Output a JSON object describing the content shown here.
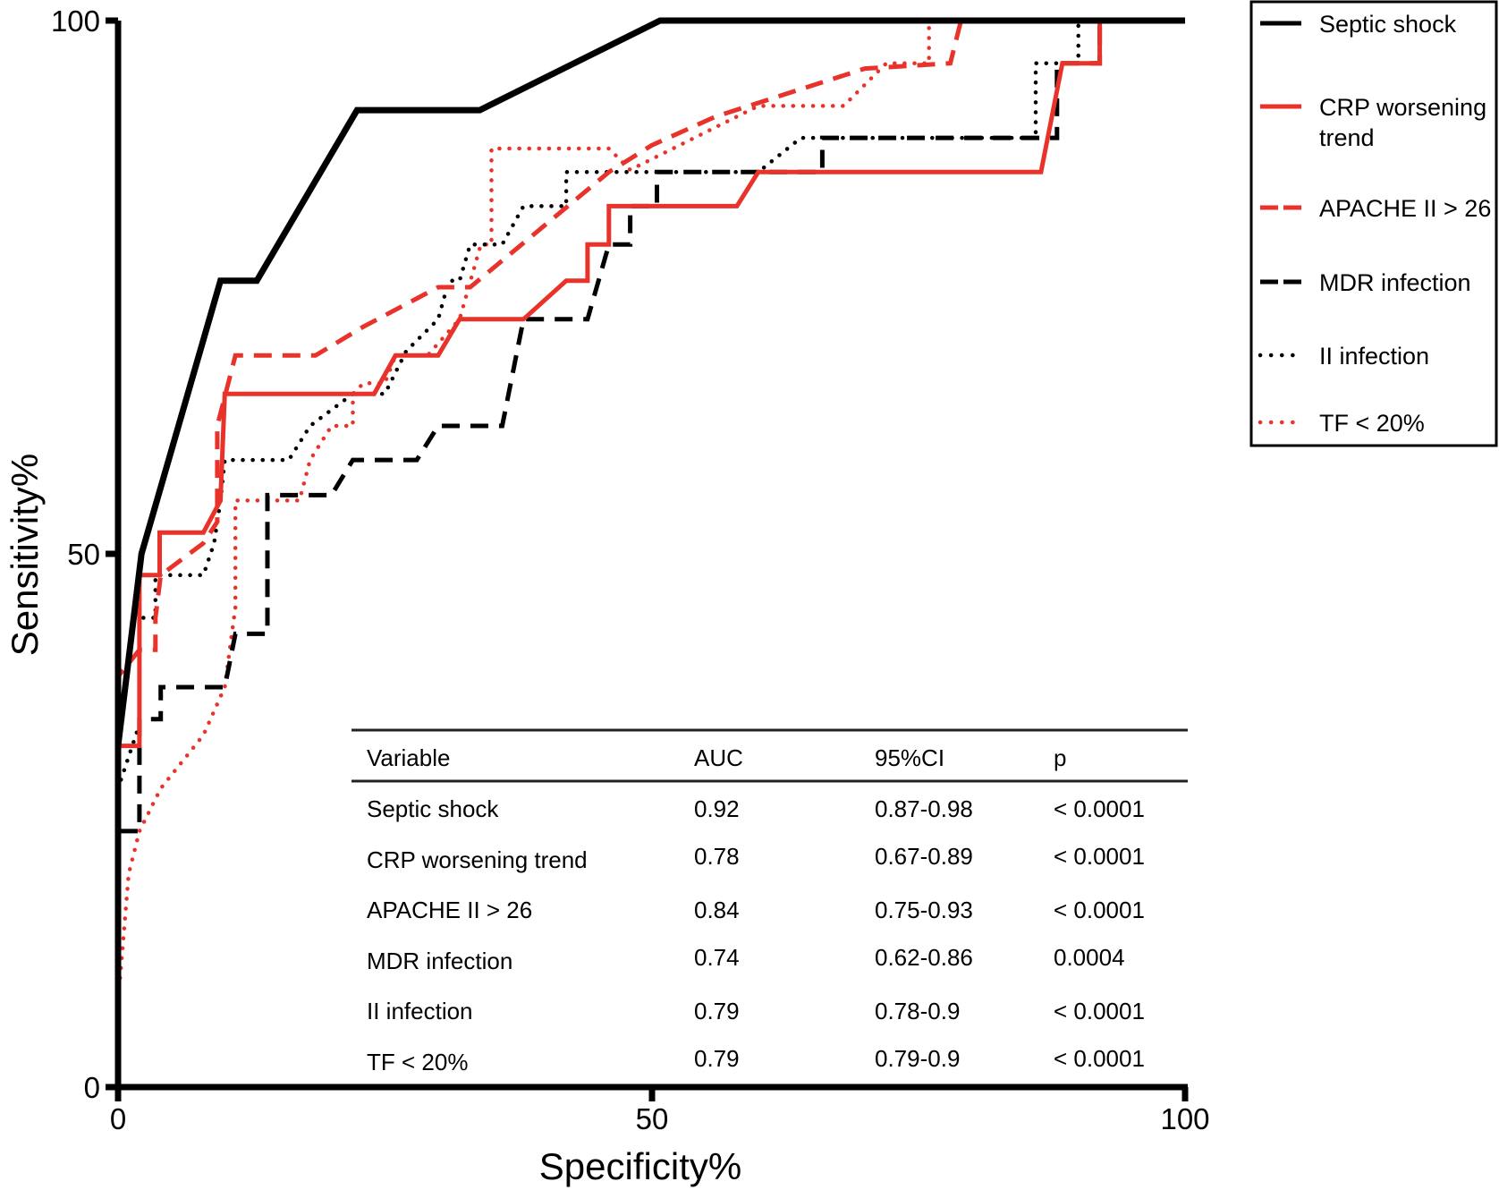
{
  "chart_data": {
    "type": "line",
    "title": "",
    "xlabel": "Specificity%",
    "ylabel": "Sensitivity%",
    "xlim": [
      0,
      100
    ],
    "ylim": [
      0,
      100
    ],
    "xticks": [
      "0",
      "50",
      "100"
    ],
    "yticks": [
      "0",
      "50",
      "100"
    ],
    "grid": false,
    "legend_position": "top-right-outside",
    "series": [
      {
        "name": "Septic shock",
        "color": "#000000",
        "style": "solid",
        "points": [
          [
            0,
            0
          ],
          [
            0,
            32
          ],
          [
            2.2,
            50
          ],
          [
            9.6,
            75.6
          ],
          [
            13,
            75.6
          ],
          [
            22.4,
            91.6
          ],
          [
            33.9,
            91.6
          ],
          [
            50.8,
            100
          ],
          [
            100,
            100
          ]
        ]
      },
      {
        "name": "CRP worsening trend",
        "color": "#e8322a",
        "style": "solid",
        "points": [
          [
            0,
            0
          ],
          [
            0,
            32
          ],
          [
            2,
            32
          ],
          [
            2,
            48
          ],
          [
            3.9,
            48
          ],
          [
            3.9,
            52
          ],
          [
            8,
            52
          ],
          [
            9.6,
            55
          ],
          [
            10,
            65
          ],
          [
            24,
            65
          ],
          [
            26,
            68.6
          ],
          [
            30,
            68.6
          ],
          [
            32,
            72
          ],
          [
            38,
            72
          ],
          [
            42,
            75.6
          ],
          [
            44,
            75.6
          ],
          [
            44,
            79
          ],
          [
            46,
            79
          ],
          [
            46,
            82.6
          ],
          [
            58,
            82.6
          ],
          [
            60,
            85.8
          ],
          [
            86.5,
            85.8
          ],
          [
            88.5,
            96
          ],
          [
            92,
            96
          ],
          [
            92,
            100
          ],
          [
            100,
            100
          ]
        ]
      },
      {
        "name": "APACHE II > 26",
        "color": "#e8322a",
        "style": "dashed",
        "points": [
          [
            0,
            0
          ],
          [
            0,
            38.5
          ],
          [
            2,
            41
          ],
          [
            3.5,
            41
          ],
          [
            3.5,
            44
          ],
          [
            4,
            48
          ],
          [
            8,
            51
          ],
          [
            9.3,
            53
          ],
          [
            9.3,
            62
          ],
          [
            11,
            68.6
          ],
          [
            18.5,
            68.6
          ],
          [
            23,
            71.3
          ],
          [
            30,
            75
          ],
          [
            33,
            75
          ],
          [
            46,
            85.8
          ],
          [
            50,
            88.3
          ],
          [
            56,
            91
          ],
          [
            70,
            95.5
          ],
          [
            78,
            96
          ],
          [
            79,
            100
          ],
          [
            100,
            100
          ]
        ]
      },
      {
        "name": "MDR infection",
        "color": "#000000",
        "style": "dashed",
        "points": [
          [
            0,
            0
          ],
          [
            0,
            24
          ],
          [
            2,
            24
          ],
          [
            2,
            34.5
          ],
          [
            4,
            34.5
          ],
          [
            4,
            37.5
          ],
          [
            10,
            37.5
          ],
          [
            11,
            42.5
          ],
          [
            14,
            42.5
          ],
          [
            14,
            55.5
          ],
          [
            20,
            55.5
          ],
          [
            22,
            58.8
          ],
          [
            28,
            58.8
          ],
          [
            30,
            62
          ],
          [
            36,
            62
          ],
          [
            38,
            72
          ],
          [
            44,
            72
          ],
          [
            46,
            79
          ],
          [
            48,
            79
          ],
          [
            48,
            82.6
          ],
          [
            50.5,
            82.6
          ],
          [
            50.5,
            85.8
          ],
          [
            66,
            85.8
          ],
          [
            66,
            89
          ],
          [
            88,
            89
          ],
          [
            88,
            96
          ],
          [
            92,
            96
          ],
          [
            92,
            100
          ],
          [
            100,
            100
          ]
        ]
      },
      {
        "name": "II infection",
        "color": "#000000",
        "style": "dotted",
        "points": [
          [
            0,
            0
          ],
          [
            0,
            28
          ],
          [
            2,
            34
          ],
          [
            2,
            44
          ],
          [
            3.5,
            44
          ],
          [
            3.5,
            48
          ],
          [
            8,
            48
          ],
          [
            9,
            51
          ],
          [
            9.6,
            55
          ],
          [
            10,
            58.8
          ],
          [
            16,
            58.8
          ],
          [
            18,
            62
          ],
          [
            22,
            65
          ],
          [
            25,
            65
          ],
          [
            27,
            69
          ],
          [
            30,
            72
          ],
          [
            31,
            75.6
          ],
          [
            32,
            75.6
          ],
          [
            33,
            79
          ],
          [
            36,
            79
          ],
          [
            38,
            82.6
          ],
          [
            42,
            82.6
          ],
          [
            42,
            85.8
          ],
          [
            52,
            85.8
          ],
          [
            60,
            85.8
          ],
          [
            64,
            89
          ],
          [
            86,
            89
          ],
          [
            86,
            96
          ],
          [
            90,
            96
          ],
          [
            90,
            100
          ],
          [
            100,
            100
          ]
        ]
      },
      {
        "name": "TF < 20%",
        "color": "#e8322a",
        "style": "dotted",
        "points": [
          [
            0,
            0
          ],
          [
            0,
            8
          ],
          [
            0.5,
            14
          ],
          [
            1,
            20
          ],
          [
            2,
            24
          ],
          [
            4,
            28
          ],
          [
            8,
            33
          ],
          [
            10,
            37.5
          ],
          [
            11,
            45
          ],
          [
            11,
            55
          ],
          [
            17,
            55
          ],
          [
            18,
            58.8
          ],
          [
            20,
            62
          ],
          [
            22,
            62
          ],
          [
            22,
            65
          ],
          [
            23,
            66
          ],
          [
            25,
            66
          ],
          [
            26,
            68.6
          ],
          [
            29,
            68.6
          ],
          [
            32,
            72
          ],
          [
            34,
            79
          ],
          [
            35,
            79
          ],
          [
            35,
            88
          ],
          [
            46,
            88
          ],
          [
            48,
            86
          ],
          [
            60,
            92
          ],
          [
            68,
            92
          ],
          [
            72,
            96
          ],
          [
            76,
            96
          ],
          [
            76,
            100
          ],
          [
            100,
            100
          ]
        ]
      }
    ],
    "legend": [
      "Septic shock",
      "CRP worsening trend",
      "APACHE II > 26",
      "MDR infection",
      "II infection",
      "TF < 20%"
    ],
    "table": {
      "headers": [
        "Variable",
        "AUC",
        "95%CI",
        "p"
      ],
      "rows": [
        [
          "Septic shock",
          "0.92",
          "0.87-0.98",
          "< 0.0001"
        ],
        [
          "CRP worsening trend",
          "0.78",
          "0.67-0.89",
          "< 0.0001"
        ],
        [
          "APACHE II > 26",
          "0.84",
          "0.75-0.93",
          "< 0.0001"
        ],
        [
          "MDR infection",
          "0.74",
          "0.62-0.86",
          "0.0004"
        ],
        [
          "II infection",
          "0.79",
          "0.78-0.9",
          "< 0.0001"
        ],
        [
          "TF < 20%",
          "0.79",
          "0.79-0.9",
          "< 0.0001"
        ]
      ]
    }
  }
}
